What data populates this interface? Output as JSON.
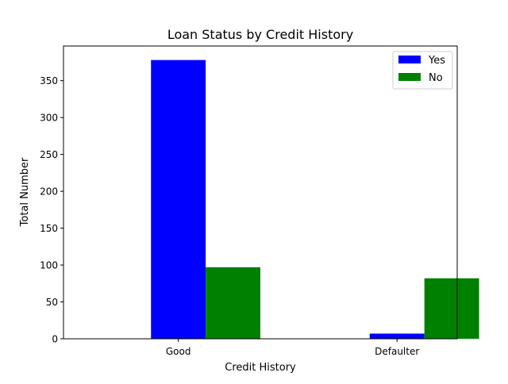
{
  "chart_data": {
    "type": "bar",
    "title": "Loan Status by Credit History",
    "xlabel": "Credit History",
    "ylabel": "Total Number",
    "categories": [
      "Good",
      "Defaulter"
    ],
    "series": [
      {
        "name": "Yes",
        "color": "#0000ff",
        "values": [
          378,
          7
        ]
      },
      {
        "name": "No",
        "color": "#008000",
        "values": [
          97,
          82
        ]
      }
    ],
    "ylim": [
      0,
      397
    ],
    "yticks": [
      0,
      50,
      100,
      150,
      200,
      250,
      300,
      350
    ],
    "grid": false,
    "legend_position": "top-right"
  }
}
